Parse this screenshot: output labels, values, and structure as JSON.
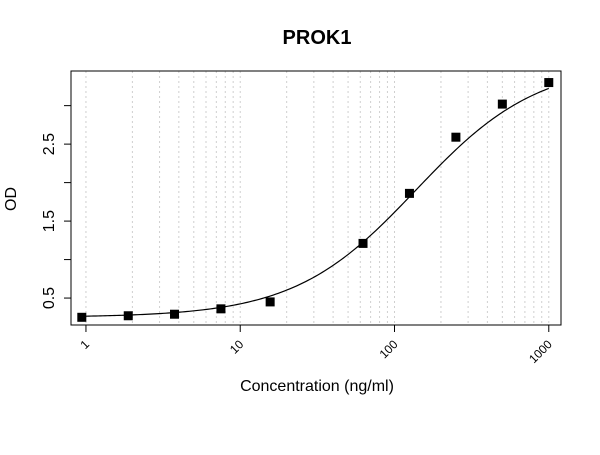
{
  "chart_data": {
    "type": "scatter",
    "title": "PROK1",
    "xlabel": "Concentration (ng/ml)",
    "ylabel": "OD",
    "x_scale": "log",
    "xlim": [
      0.8,
      1200
    ],
    "ylim": [
      0.15,
      3.45
    ],
    "x_ticks": [
      1,
      10,
      100,
      1000
    ],
    "x_tick_labels": [
      "1",
      "10",
      "100",
      "1000"
    ],
    "y_ticks": [
      0.5,
      1.0,
      1.5,
      2.0,
      2.5,
      3.0
    ],
    "y_tick_labels": [
      "0.5",
      "",
      "1.5",
      "",
      "2.5",
      ""
    ],
    "grid": "vertical-dotted",
    "series": [
      {
        "x": [
          0.94,
          1.88,
          3.75,
          7.5,
          15.63,
          62.5,
          125,
          250,
          500,
          1000
        ],
        "y": [
          0.25,
          0.27,
          0.29,
          0.36,
          0.45,
          1.21,
          1.86,
          2.59,
          3.02,
          3.3
        ]
      }
    ],
    "fit_curve": {
      "type": "4PL",
      "bottom": 0.25,
      "top": 3.56,
      "ec50": 138,
      "hill": 1.1
    },
    "colors": {
      "marker": "#000000",
      "line": "#000000",
      "grid": "#cfcfcf"
    }
  }
}
